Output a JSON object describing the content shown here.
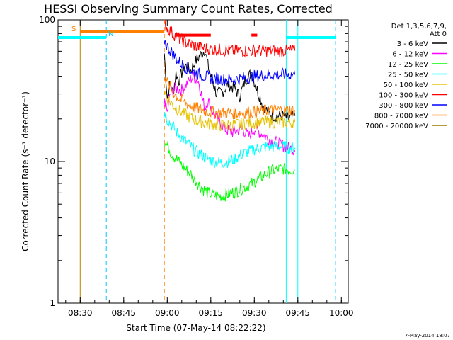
{
  "chart_data": {
    "type": "line",
    "title": "HESSI Observing Summary Count Rates, Corrected",
    "xlabel": "Start Time (07-May-14 08:22:22)",
    "ylabel": "Corrected Count Rate (s⁻¹ detector⁻¹)",
    "x_range": [
      "08:22:22",
      "10:02:22"
    ],
    "xticks": [
      "08:30",
      "08:45",
      "09:00",
      "09:15",
      "09:30",
      "09:45",
      "10:00"
    ],
    "y_scale": "log",
    "ylim": [
      1,
      100
    ],
    "yticks": [
      "1",
      "10",
      "100"
    ],
    "legend_header": [
      "Det 1,3,5,6,7,9,",
      "Att 0"
    ],
    "legend_position": "right",
    "footer_date": "7-May-2014 18:07",
    "annotations": {
      "saa": "S",
      "night": "N"
    },
    "series": [
      {
        "name": "3 - 6 keV",
        "color": "#000000",
        "points": [
          [
            "08:59:00",
            58
          ],
          [
            "09:00:00",
            28
          ],
          [
            "09:01:00",
            36
          ],
          [
            "09:02:00",
            30
          ],
          [
            "09:03:00",
            42
          ],
          [
            "09:04:00",
            37
          ],
          [
            "09:06:00",
            48
          ],
          [
            "09:08:00",
            44
          ],
          [
            "09:10:00",
            52
          ],
          [
            "09:12:00",
            58
          ],
          [
            "09:13:00",
            62
          ],
          [
            "09:14:00",
            48
          ],
          [
            "09:15:00",
            40
          ],
          [
            "09:17:00",
            30
          ],
          [
            "09:19:00",
            31
          ],
          [
            "09:21:00",
            35
          ],
          [
            "09:23:00",
            33
          ],
          [
            "09:25:00",
            29
          ],
          [
            "09:27:00",
            38
          ],
          [
            "09:29:00",
            42
          ],
          [
            "09:31:00",
            32
          ],
          [
            "09:33:00",
            25
          ],
          [
            "09:35:00",
            22
          ],
          [
            "09:37:00",
            21
          ],
          [
            "09:40:00",
            21
          ],
          [
            "09:42:00",
            20
          ],
          [
            "09:44:00",
            21
          ]
        ]
      },
      {
        "name": "6 - 12 keV",
        "color": "#ff00ff",
        "points": [
          [
            "08:59:00",
            28
          ],
          [
            "09:00:00",
            22
          ],
          [
            "09:01:00",
            30
          ],
          [
            "09:03:00",
            33
          ],
          [
            "09:05:00",
            32
          ],
          [
            "09:07:00",
            36
          ],
          [
            "09:09:00",
            40
          ],
          [
            "09:11:00",
            36
          ],
          [
            "09:12:00",
            28
          ],
          [
            "09:13:00",
            24
          ],
          [
            "09:14:00",
            27
          ],
          [
            "09:16:00",
            22
          ],
          [
            "09:18:00",
            19
          ],
          [
            "09:20:00",
            17
          ],
          [
            "09:22:00",
            16
          ],
          [
            "09:24:00",
            16.5
          ],
          [
            "09:26:00",
            17
          ],
          [
            "09:28:00",
            15
          ],
          [
            "09:30:00",
            17
          ],
          [
            "09:32:00",
            16
          ],
          [
            "09:34:00",
            15
          ],
          [
            "09:36:00",
            14
          ],
          [
            "09:38:00",
            13.5
          ],
          [
            "09:40:00",
            13
          ],
          [
            "09:42:00",
            12.5
          ],
          [
            "09:44:00",
            12
          ]
        ]
      },
      {
        "name": "12 - 25 keV",
        "color": "#00ff00",
        "points": [
          [
            "08:59:00",
            14
          ],
          [
            "09:00:00",
            13
          ],
          [
            "09:02:00",
            11
          ],
          [
            "09:04:00",
            10
          ],
          [
            "09:06:00",
            9
          ],
          [
            "09:08:00",
            8.2
          ],
          [
            "09:10:00",
            7.2
          ],
          [
            "09:12:00",
            6.5
          ],
          [
            "09:14:00",
            6
          ],
          [
            "09:16:00",
            5.8
          ],
          [
            "09:18:00",
            5.7
          ],
          [
            "09:20:00",
            5.8
          ],
          [
            "09:22:00",
            6
          ],
          [
            "09:24:00",
            6.2
          ],
          [
            "09:26:00",
            6.5
          ],
          [
            "09:28:00",
            6.8
          ],
          [
            "09:30:00",
            7.2
          ],
          [
            "09:32:00",
            7.7
          ],
          [
            "09:34:00",
            8.2
          ],
          [
            "09:36:00",
            8.6
          ],
          [
            "09:38:00",
            8.8
          ],
          [
            "09:40:00",
            8.9
          ],
          [
            "09:42:00",
            8.8
          ],
          [
            "09:44:00",
            8.7
          ]
        ]
      },
      {
        "name": "25 - 50 keV",
        "color": "#00ffff",
        "points": [
          [
            "08:59:00",
            23
          ],
          [
            "09:00:00",
            20
          ],
          [
            "09:02:00",
            17.5
          ],
          [
            "09:04:00",
            15.5
          ],
          [
            "09:06:00",
            14
          ],
          [
            "09:08:00",
            12.8
          ],
          [
            "09:10:00",
            11.7
          ],
          [
            "09:12:00",
            11
          ],
          [
            "09:14:00",
            10.4
          ],
          [
            "09:16:00",
            10
          ],
          [
            "09:18:00",
            9.8
          ],
          [
            "09:20:00",
            9.9
          ],
          [
            "09:22:00",
            10.2
          ],
          [
            "09:24:00",
            10.7
          ],
          [
            "09:26:00",
            11.3
          ],
          [
            "09:28:00",
            11.8
          ],
          [
            "09:30:00",
            12.2
          ],
          [
            "09:32:00",
            12.5
          ],
          [
            "09:34:00",
            12.7
          ],
          [
            "09:36:00",
            12.8
          ],
          [
            "09:38:00",
            12.8
          ],
          [
            "09:40:00",
            12.7
          ],
          [
            "09:42:00",
            12.6
          ],
          [
            "09:44:00",
            12.5
          ]
        ]
      },
      {
        "name": "50 - 100 keV",
        "color": "#e6c200",
        "points": [
          [
            "08:59:00",
            31
          ],
          [
            "09:00:00",
            28
          ],
          [
            "09:02:00",
            25
          ],
          [
            "09:04:00",
            23
          ],
          [
            "09:06:00",
            21.5
          ],
          [
            "09:08:00",
            20.5
          ],
          [
            "09:10:00",
            19.5
          ],
          [
            "09:12:00",
            19
          ],
          [
            "09:14:00",
            18.5
          ],
          [
            "09:16:00",
            18.2
          ],
          [
            "09:18:00",
            18
          ],
          [
            "09:20:00",
            18
          ],
          [
            "09:22:00",
            18.1
          ],
          [
            "09:24:00",
            18.3
          ],
          [
            "09:26:00",
            18.5
          ],
          [
            "09:28:00",
            18.7
          ],
          [
            "09:30:00",
            18.8
          ],
          [
            "09:32:00",
            18.9
          ],
          [
            "09:34:00",
            19
          ],
          [
            "09:36:00",
            19
          ],
          [
            "09:38:00",
            19
          ],
          [
            "09:40:00",
            19
          ],
          [
            "09:42:00",
            19
          ],
          [
            "09:44:00",
            19
          ]
        ]
      },
      {
        "name": "100 - 300 keV",
        "color": "#ff0000",
        "points": [
          [
            "08:59:00",
            95
          ],
          [
            "09:00:00",
            88
          ],
          [
            "09:02:00",
            80
          ],
          [
            "09:04:00",
            74
          ],
          [
            "09:06:00",
            70
          ],
          [
            "09:08:00",
            67
          ],
          [
            "09:10:00",
            65
          ],
          [
            "09:12:00",
            63.5
          ],
          [
            "09:14:00",
            62.5
          ],
          [
            "09:16:00",
            62
          ],
          [
            "09:18:00",
            61.5
          ],
          [
            "09:20:00",
            61
          ],
          [
            "09:22:00",
            60.5
          ],
          [
            "09:24:00",
            60.5
          ],
          [
            "09:26:00",
            60.5
          ],
          [
            "09:28:00",
            60.5
          ],
          [
            "09:30:00",
            60.5
          ],
          [
            "09:32:00",
            60.5
          ],
          [
            "09:34:00",
            60.5
          ],
          [
            "09:36:00",
            60.5
          ],
          [
            "09:38:00",
            60.5
          ],
          [
            "09:40:00",
            60.5
          ],
          [
            "09:42:00",
            60.5
          ],
          [
            "09:44:00",
            60.5
          ]
        ]
      },
      {
        "name": "300 - 800 keV",
        "color": "#0000ff",
        "points": [
          [
            "08:59:00",
            72
          ],
          [
            "09:00:00",
            65
          ],
          [
            "09:02:00",
            57
          ],
          [
            "09:04:00",
            51
          ],
          [
            "09:06:00",
            47
          ],
          [
            "09:08:00",
            44
          ],
          [
            "09:10:00",
            42
          ],
          [
            "09:12:00",
            40.5
          ],
          [
            "09:14:00",
            39.5
          ],
          [
            "09:16:00",
            38.8
          ],
          [
            "09:18:00",
            38.3
          ],
          [
            "09:20:00",
            38
          ],
          [
            "09:22:00",
            38
          ],
          [
            "09:24:00",
            38.2
          ],
          [
            "09:26:00",
            38.7
          ],
          [
            "09:28:00",
            39.3
          ],
          [
            "09:30:00",
            40
          ],
          [
            "09:32:00",
            40.5
          ],
          [
            "09:34:00",
            40.8
          ],
          [
            "09:36:00",
            41
          ],
          [
            "09:38:00",
            41
          ],
          [
            "09:40:00",
            41
          ],
          [
            "09:42:00",
            41
          ],
          [
            "09:44:00",
            41
          ]
        ]
      },
      {
        "name": "800 - 7000 keV",
        "color": "#ff8000",
        "points": [
          [
            "08:59:00",
            42
          ],
          [
            "09:00:00",
            36
          ],
          [
            "09:02:00",
            31
          ],
          [
            "09:04:00",
            28
          ],
          [
            "09:06:00",
            26
          ],
          [
            "09:08:00",
            24.7
          ],
          [
            "09:10:00",
            23.8
          ],
          [
            "09:12:00",
            23.1
          ],
          [
            "09:14:00",
            22.6
          ],
          [
            "09:16:00",
            22.3
          ],
          [
            "09:18:00",
            22.1
          ],
          [
            "09:20:00",
            22
          ],
          [
            "09:22:00",
            22
          ],
          [
            "09:24:00",
            22
          ],
          [
            "09:26:00",
            22.1
          ],
          [
            "09:28:00",
            22.3
          ],
          [
            "09:30:00",
            22.5
          ],
          [
            "09:32:00",
            22.7
          ],
          [
            "09:34:00",
            22.9
          ],
          [
            "09:36:00",
            23
          ],
          [
            "09:38:00",
            23.1
          ],
          [
            "09:40:00",
            23.1
          ],
          [
            "09:42:00",
            23.1
          ],
          [
            "09:44:00",
            23.1
          ]
        ]
      },
      {
        "name": "7000 - 20000 keV",
        "color": "#9a7a00",
        "points": []
      }
    ],
    "bars": [
      {
        "color": "#ff8000",
        "start": "08:30:00",
        "end": "08:59:00",
        "y": 83
      },
      {
        "color": "#ff0000",
        "start": "09:03:00",
        "end": "09:15:00",
        "y": 78
      },
      {
        "color": "#ff0000",
        "start": "09:29:00",
        "end": "09:31:00",
        "y": 78
      },
      {
        "color": "#00ffff",
        "start": "08:22:22",
        "end": "08:39:00",
        "y": 75
      },
      {
        "color": "#00ffff",
        "start": "09:41:00",
        "end": "09:58:00",
        "y": 75
      }
    ],
    "vlines": [
      {
        "time": "08:30:00",
        "color": "#c08000",
        "dash": false
      },
      {
        "time": "08:39:00",
        "color": "#00c8ff",
        "dash": true
      },
      {
        "time": "08:59:00",
        "color": "#ff8000",
        "dash": true
      },
      {
        "time": "09:41:00",
        "color": "#00ffff",
        "dash": false
      },
      {
        "time": "09:45:00",
        "color": "#00ffff",
        "dash": false
      },
      {
        "time": "09:58:00",
        "color": "#00c8ff",
        "dash": true
      }
    ]
  }
}
